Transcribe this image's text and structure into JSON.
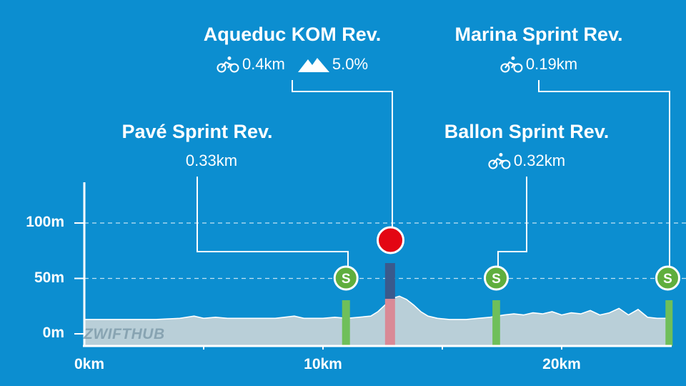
{
  "chart_data": {
    "type": "area",
    "title": "",
    "xlabel": "",
    "ylabel": "",
    "x_unit": "km",
    "y_unit": "m",
    "xlim": [
      0,
      24.6
    ],
    "ylim": [
      0,
      112
    ],
    "x_ticks": [
      0,
      10,
      20
    ],
    "x_tick_labels": [
      "0km",
      "10km",
      "20km"
    ],
    "y_ticks": [
      0,
      50,
      100
    ],
    "y_tick_labels": [
      "0m",
      "50m",
      "100m"
    ],
    "gridlines": [
      50,
      100
    ],
    "series": [
      {
        "x": [
          0,
          1,
          2,
          3,
          4,
          4.6,
          5,
          5.5,
          6,
          7,
          8,
          8.8,
          9.2,
          10,
          10.5,
          11,
          11.5,
          12,
          12.3,
          12.6,
          12.9,
          13.2,
          13.5,
          13.8,
          14.1,
          14.4,
          14.8,
          15.3,
          16,
          16.5,
          17,
          17.3,
          17.6,
          18,
          18.4,
          18.8,
          19.2,
          19.6,
          20,
          20.4,
          20.8,
          21.2,
          21.6,
          22,
          22.4,
          22.8,
          23.2,
          23.6,
          24,
          24.6
        ],
        "y": [
          13,
          13,
          13,
          13,
          14,
          16,
          14,
          15,
          14,
          14,
          14,
          16,
          14,
          14,
          15,
          14,
          15,
          16,
          20,
          26,
          32,
          34,
          31,
          26,
          20,
          16,
          14,
          13,
          13,
          14,
          15,
          16,
          17,
          18,
          17,
          19,
          18,
          20,
          17,
          19,
          18,
          21,
          17,
          19,
          23,
          17,
          22,
          15,
          14,
          14
        ]
      }
    ],
    "segments": [
      {
        "name": "Pavé Sprint Rev.",
        "type": "sprint",
        "badge": "S",
        "start_km": 10.8,
        "end_km": 11.13,
        "length": "0.33km",
        "grade": ""
      },
      {
        "name": "Aqueduc KOM Rev.",
        "type": "kom",
        "badge": "",
        "start_km": 12.6,
        "end_km": 13.0,
        "length": "0.4km",
        "grade": "5.0%"
      },
      {
        "name": "Ballon Sprint Rev.",
        "type": "sprint",
        "badge": "S",
        "start_km": 17.1,
        "end_km": 17.42,
        "length": "0.32km",
        "grade": ""
      },
      {
        "name": "Marina Sprint Rev.",
        "type": "sprint",
        "badge": "S",
        "start_km": 24.35,
        "end_km": 24.54,
        "length": "0.19km",
        "grade": ""
      }
    ],
    "annotations": [
      {
        "segment": 1,
        "title": "Aqueduc KOM Rev.",
        "stats": [
          "0.4km",
          "5.0%"
        ],
        "icons": [
          "bike-icon",
          "mountain-icon"
        ]
      },
      {
        "segment": 3,
        "title": "Marina Sprint Rev.",
        "stats": [
          "0.19km"
        ],
        "icons": [
          "bike-icon"
        ]
      },
      {
        "segment": 0,
        "title": "Pavé Sprint Rev.",
        "stats": [
          "0.33km"
        ],
        "icons": []
      },
      {
        "segment": 2,
        "title": "Ballon Sprint Rev.",
        "stats": [
          "0.32km"
        ],
        "icons": [
          "bike-icon"
        ]
      }
    ],
    "grid": true,
    "legend": "none"
  },
  "watermark": "ZWIFTHUB",
  "colors": {
    "background": "#0c8ed0",
    "profile_fill": "#b9cfd8",
    "sprint": "#5fae3e",
    "sprint_bar": "#6fbf5a",
    "kom": "#e30613",
    "kom_bar_top": "#3a5a8c",
    "kom_bar_bottom": "#d98a96",
    "axis": "#ffffff"
  }
}
